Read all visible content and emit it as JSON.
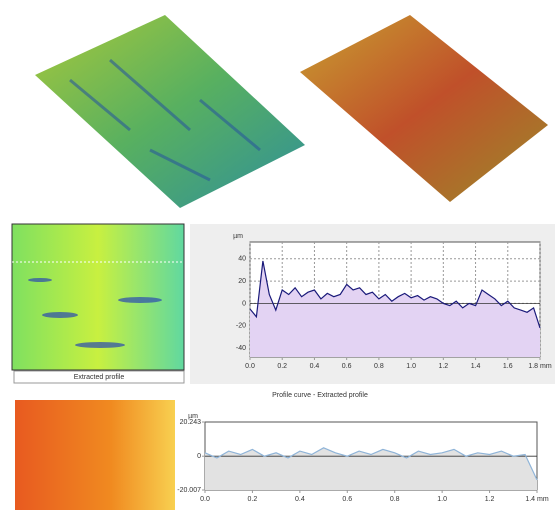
{
  "chart_data": [
    {
      "type": "line",
      "map_label": "Extracted profile",
      "y_label": "µm",
      "x": [
        0,
        0.04,
        0.08,
        0.12,
        0.16,
        0.2,
        0.24,
        0.28,
        0.32,
        0.36,
        0.4,
        0.44,
        0.48,
        0.52,
        0.56,
        0.6,
        0.64,
        0.68,
        0.72,
        0.76,
        0.8,
        0.84,
        0.88,
        0.92,
        0.96,
        1.0,
        1.04,
        1.08,
        1.12,
        1.16,
        1.2,
        1.24,
        1.28,
        1.32,
        1.36,
        1.4,
        1.44,
        1.48,
        1.52,
        1.56,
        1.6,
        1.64,
        1.68,
        1.72,
        1.76,
        1.8
      ],
      "values": [
        -5,
        -12,
        38,
        8,
        -6,
        12,
        8,
        14,
        6,
        10,
        12,
        4,
        9,
        6,
        8,
        17,
        12,
        14,
        8,
        10,
        4,
        8,
        2,
        6,
        9,
        5,
        7,
        3,
        6,
        4,
        0,
        -2,
        2,
        -4,
        0,
        -2,
        12,
        8,
        4,
        -2,
        2,
        -4,
        -6,
        -8,
        -4,
        -22
      ],
      "color": "#1a1a7a",
      "fill_color": "#e3d3f3",
      "xlim": [
        0,
        1.8
      ],
      "ylim": [
        -48,
        55
      ],
      "xticks": [
        {
          "value": 0,
          "label": "0.0"
        },
        0.2,
        0.4,
        0.6,
        0.8,
        {
          "value": 1,
          "label": "1.0"
        },
        1.2,
        1.4,
        1.6,
        {
          "value": 1.8,
          "label": "1.8 mm"
        }
      ],
      "yticks": [
        40,
        20,
        0,
        -20,
        -40
      ],
      "grid": true
    },
    {
      "type": "line",
      "title": "Profile curve - Extracted profile",
      "y_label": "µm",
      "x": [
        0,
        0.05,
        0.1,
        0.15,
        0.2,
        0.25,
        0.3,
        0.35,
        0.4,
        0.45,
        0.5,
        0.55,
        0.6,
        0.65,
        0.7,
        0.75,
        0.8,
        0.85,
        0.9,
        0.95,
        1.0,
        1.05,
        1.1,
        1.15,
        1.2,
        1.25,
        1.3,
        1.35,
        1.4
      ],
      "values": [
        2,
        -1,
        3,
        1,
        4,
        0,
        2,
        -1,
        3,
        1,
        5,
        2,
        0,
        3,
        1,
        4,
        2,
        -1,
        3,
        1,
        2,
        4,
        0,
        2,
        1,
        3,
        0,
        1,
        -14
      ],
      "color": "#8fb4d8",
      "fill_color": "#e2e2e2",
      "xlim": [
        0,
        1.4
      ],
      "ylim": [
        -20.007,
        20.243
      ],
      "xticks": [
        {
          "value": 0,
          "label": "0.0"
        },
        0.2,
        0.4,
        0.6,
        0.8,
        {
          "value": 1,
          "label": "1.0"
        },
        1.2,
        {
          "value": 1.4,
          "label": "1.4 mm"
        }
      ],
      "yticks": [
        20.243,
        0,
        -20.007
      ],
      "grid": false
    }
  ]
}
